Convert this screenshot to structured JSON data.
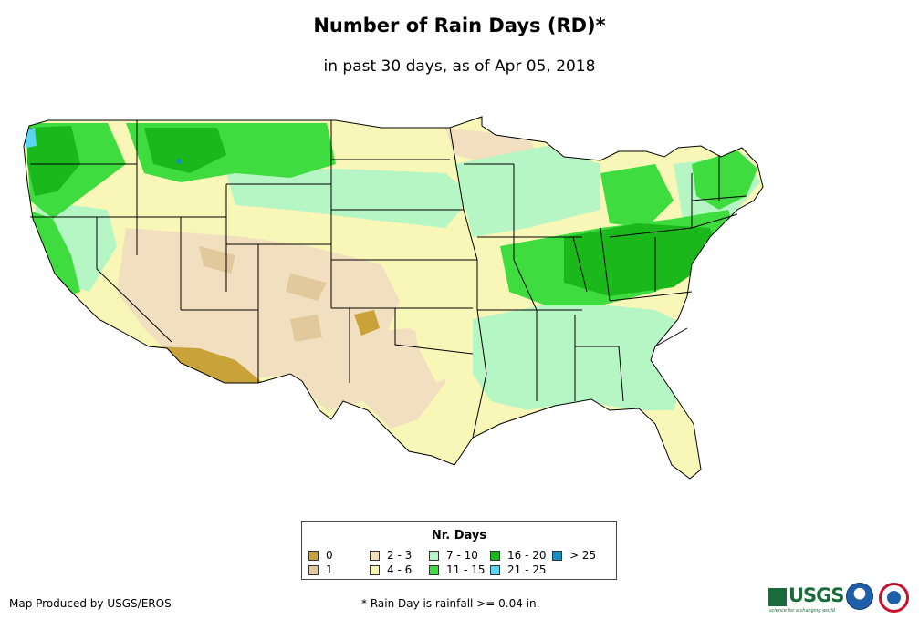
{
  "header": {
    "title": "Number of Rain Days (RD)*",
    "subtitle": "in past 30 days, as of Apr 05, 2018"
  },
  "legend": {
    "title": "Nr. Days",
    "items": [
      {
        "label": "0",
        "color": "#c9a23a"
      },
      {
        "label": "1",
        "color": "#e2c99b"
      },
      {
        "label": "2 - 3",
        "color": "#f2dfc0"
      },
      {
        "label": "4 - 6",
        "color": "#f8f7b8"
      },
      {
        "label": "7 - 10",
        "color": "#b6f5c4"
      },
      {
        "label": "11 - 15",
        "color": "#3fdc3f"
      },
      {
        "label": "16 - 20",
        "color": "#1bb81b"
      },
      {
        "label": "21 - 25",
        "color": "#5cd4f2"
      },
      {
        "label": "> 25",
        "color": "#1b8bc4"
      }
    ]
  },
  "footer": {
    "credit": "Map Produced by USGS/EROS",
    "footnote": "* Rain Day is rainfall >= 0.04 in."
  },
  "logos": {
    "usgs_text": "USGS",
    "usgs_tagline": "science for a changing world",
    "noaa_icon": "noaa-logo",
    "nws_icon": "nws-logo"
  },
  "map": {
    "region": "Contiguous United States",
    "colors": {
      "none": "#c9a23a",
      "one": "#e2c99b",
      "two_three": "#f2dfc0",
      "four_six": "#f8f7b8",
      "seven_ten": "#b6f5c4",
      "eleven_fifteen": "#3fdc3f",
      "sixteen_twenty": "#1bb81b",
      "twentyone_twentyfive": "#5cd4f2",
      "over_twentyfive": "#1b8bc4",
      "border": "#000000"
    }
  }
}
